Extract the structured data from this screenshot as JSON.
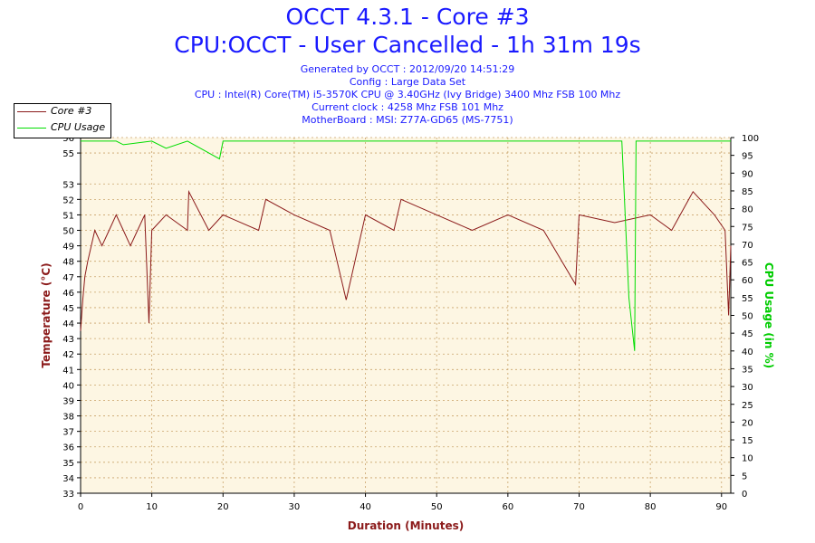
{
  "header": {
    "title": "OCCT 4.3.1 - Core #3",
    "subtitle": "CPU:OCCT - User Cancelled - 1h 31m 19s",
    "info_lines": [
      "Generated by OCCT : 2012/09/20 14:51:29",
      "Config : Large Data Set",
      "CPU : Intel(R) Core(TM) i5-3570K CPU @ 3.40GHz (Ivy Bridge) 3400 Mhz FSB 100 Mhz",
      "Current clock : 4258 Mhz FSB 101 Mhz",
      "MotherBoard : MSI: Z77A-GD65 (MS-7751)"
    ]
  },
  "legend": {
    "items": [
      {
        "label": "Core #3",
        "color": "#8b1a1a"
      },
      {
        "label": "CPU Usage",
        "color": "#00dd00"
      }
    ]
  },
  "chart_data": {
    "type": "line",
    "xlabel": "Duration (Minutes)",
    "ylabel": "Temperature (°C)",
    "y2label": "CPU Usage (in %)",
    "xlim": [
      0,
      91.3
    ],
    "ylim": [
      33,
      56
    ],
    "y2lim": [
      0,
      100
    ],
    "x_ticks": [
      0,
      10,
      20,
      30,
      40,
      50,
      60,
      70,
      80,
      90
    ],
    "y_ticks": [
      33,
      34,
      35,
      36,
      37,
      38,
      39,
      40,
      41,
      42,
      43,
      44,
      45,
      46,
      47,
      48,
      49,
      50,
      51,
      52,
      53,
      55,
      56
    ],
    "y2_ticks": [
      0,
      5,
      10,
      15,
      20,
      25,
      30,
      35,
      40,
      45,
      50,
      55,
      60,
      65,
      70,
      75,
      80,
      85,
      90,
      95,
      100
    ],
    "grid": true,
    "legend_position": "top-left",
    "background": "#fdf6e3",
    "grid_color": "#c9a36a",
    "series": [
      {
        "name": "Core #3",
        "axis": "left",
        "color": "#8b1a1a",
        "points": [
          [
            0,
            43.5
          ],
          [
            0.3,
            45.5
          ],
          [
            0.6,
            47
          ],
          [
            1,
            48
          ],
          [
            1.5,
            49
          ],
          [
            2,
            50
          ],
          [
            3,
            49
          ],
          [
            4,
            50
          ],
          [
            5,
            51
          ],
          [
            6,
            50
          ],
          [
            7,
            49
          ],
          [
            8,
            50
          ],
          [
            9,
            51
          ],
          [
            9.6,
            44
          ],
          [
            10,
            50
          ],
          [
            12,
            51
          ],
          [
            15,
            50
          ],
          [
            15.2,
            52.5
          ],
          [
            18,
            50
          ],
          [
            20,
            51
          ],
          [
            25,
            50
          ],
          [
            26,
            52
          ],
          [
            30,
            51
          ],
          [
            35,
            50
          ],
          [
            37.3,
            45.5
          ],
          [
            40,
            51
          ],
          [
            44,
            50
          ],
          [
            45,
            52
          ],
          [
            50,
            51
          ],
          [
            55,
            50
          ],
          [
            60,
            51
          ],
          [
            65,
            50
          ],
          [
            69.5,
            46.5
          ],
          [
            70,
            51
          ],
          [
            75,
            50.5
          ],
          [
            80,
            51
          ],
          [
            83,
            50
          ],
          [
            86,
            52.5
          ],
          [
            89,
            51
          ],
          [
            90.5,
            50
          ],
          [
            91,
            44.5
          ],
          [
            91.3,
            49
          ]
        ]
      },
      {
        "name": "CPU Usage",
        "axis": "right",
        "color": "#00dd00",
        "points": [
          [
            0,
            99
          ],
          [
            2,
            99
          ],
          [
            5,
            99
          ],
          [
            6,
            98
          ],
          [
            10,
            99
          ],
          [
            12,
            97
          ],
          [
            15,
            99
          ],
          [
            19.5,
            94
          ],
          [
            20,
            99
          ],
          [
            25,
            99
          ],
          [
            30,
            99
          ],
          [
            35,
            99
          ],
          [
            40,
            99
          ],
          [
            45,
            99
          ],
          [
            50,
            99
          ],
          [
            55,
            99
          ],
          [
            60,
            99
          ],
          [
            65,
            99
          ],
          [
            70,
            99
          ],
          [
            76,
            99
          ],
          [
            77,
            55
          ],
          [
            77.8,
            40
          ],
          [
            78,
            99
          ],
          [
            80,
            99
          ],
          [
            85,
            99
          ],
          [
            90,
            99
          ],
          [
            91.3,
            99
          ]
        ]
      }
    ]
  }
}
